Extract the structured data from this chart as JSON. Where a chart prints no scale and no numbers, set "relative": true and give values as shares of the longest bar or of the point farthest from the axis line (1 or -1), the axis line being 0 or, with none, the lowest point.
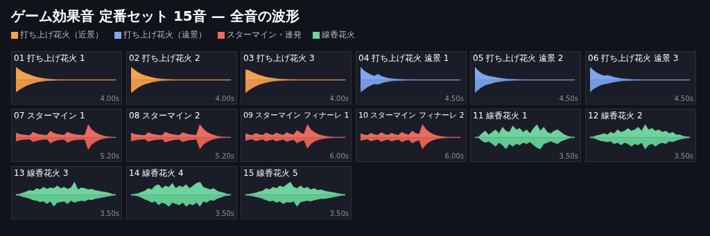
{
  "chart_data": [
    {
      "type": "other",
      "title": "ゲーム効果音 定番セット 15音 — 全音の波形",
      "legend": "top left",
      "series": [
        {
          "name": "打ち上げ花火（近景）",
          "color": "#f4a24e"
        },
        {
          "name": "打ち上げ花火（遠景）",
          "color": "#7fa7ef"
        },
        {
          "name": "スターマイン・連発",
          "color": "#ec6b5f"
        },
        {
          "name": "線香花火",
          "color": "#6fd39e"
        }
      ]
    },
    {
      "type": "area",
      "title": "01 打ち上げ花火 1",
      "relative": true,
      "annotations": [
        "4.00s"
      ],
      "categories": [
        null,
        null,
        null,
        null,
        null,
        null,
        null,
        null,
        null,
        null,
        null,
        null,
        null,
        null,
        null,
        null,
        null,
        null,
        null,
        null,
        null,
        null,
        null,
        null,
        null,
        null,
        null,
        null,
        null,
        null
      ],
      "series": [
        {
          "color": "#f4a24e",
          "values": [
            1,
            0.8,
            0.62,
            0.5,
            0.4,
            0.3,
            0.22,
            0.16,
            0.11,
            0.08,
            0.06,
            0.04,
            0.03,
            0.03,
            0.02,
            0.02,
            0.02,
            0.02,
            0.02,
            0.02,
            0.02,
            0.02,
            0.02,
            0.02,
            0.02,
            0.02,
            0.02,
            0.02,
            0.02,
            0.02
          ]
        },
        {
          "color": "#e8964a",
          "values": [
            -0.95,
            -0.75,
            -0.6,
            -0.45,
            -0.35,
            -0.25,
            -0.18,
            -0.12,
            -0.09,
            -0.06,
            -0.05,
            -0.04,
            -0.03,
            -0.02,
            -0.02,
            -0.02,
            -0.02,
            -0.02,
            -0.02,
            -0.02,
            -0.02,
            -0.02,
            -0.02,
            -0.02,
            -0.02,
            -0.02,
            -0.02,
            -0.02,
            -0.02,
            -0.02
          ]
        }
      ]
    },
    {
      "type": "area",
      "title": "02 打ち上げ花火 2",
      "relative": true,
      "annotations": [
        "4.00s"
      ],
      "categories": [
        null,
        null,
        null,
        null,
        null,
        null,
        null,
        null,
        null,
        null,
        null,
        null,
        null,
        null,
        null,
        null,
        null,
        null,
        null,
        null,
        null,
        null,
        null,
        null,
        null,
        null,
        null,
        null,
        null,
        null
      ],
      "series": [
        {
          "color": "#f4a24e",
          "values": [
            1,
            0.78,
            0.6,
            0.45,
            0.35,
            0.27,
            0.2,
            0.14,
            0.1,
            0.07,
            0.05,
            0.04,
            0.03,
            0.02,
            0.02,
            0.02,
            0.02,
            0.02,
            0.02,
            0.02,
            0.02,
            0.02,
            0.02,
            0.02,
            0.02,
            0.02,
            0.02,
            0.02,
            0.02,
            0.02
          ]
        },
        {
          "color": "#e8964a",
          "values": [
            -1,
            -0.8,
            -0.6,
            -0.45,
            -0.33,
            -0.25,
            -0.17,
            -0.12,
            -0.08,
            -0.06,
            -0.04,
            -0.03,
            -0.03,
            -0.02,
            -0.02,
            -0.02,
            -0.02,
            -0.02,
            -0.02,
            -0.02,
            -0.02,
            -0.02,
            -0.02,
            -0.02,
            -0.02,
            -0.02,
            -0.02,
            -0.02,
            -0.02,
            -0.02
          ]
        }
      ]
    },
    {
      "type": "area",
      "title": "03 打ち上げ花火 3",
      "relative": true,
      "annotations": [
        "4.00s"
      ],
      "categories": [
        null,
        null,
        null,
        null,
        null,
        null,
        null,
        null,
        null,
        null,
        null,
        null,
        null,
        null,
        null,
        null,
        null,
        null,
        null,
        null,
        null,
        null,
        null,
        null,
        null,
        null,
        null,
        null,
        null,
        null
      ],
      "series": [
        {
          "color": "#f4a24e",
          "values": [
            0.8,
            0.75,
            0.6,
            0.48,
            0.38,
            0.3,
            0.22,
            0.17,
            0.13,
            0.09,
            0.07,
            0.05,
            0.04,
            0.03,
            0.03,
            0.02,
            0.02,
            0.02,
            0.02,
            0.02,
            0.02,
            0.02,
            0.02,
            0.02,
            0.02,
            0.02,
            0.02,
            0.02,
            0.02,
            0.02
          ]
        },
        {
          "color": "#e8964a",
          "values": [
            -1,
            -0.8,
            -0.62,
            -0.48,
            -0.36,
            -0.27,
            -0.2,
            -0.14,
            -0.1,
            -0.07,
            -0.05,
            -0.04,
            -0.03,
            -0.03,
            -0.02,
            -0.02,
            -0.02,
            -0.02,
            -0.02,
            -0.02,
            -0.02,
            -0.02,
            -0.02,
            -0.02,
            -0.02,
            -0.02,
            -0.02,
            -0.02,
            -0.02,
            -0.02
          ]
        }
      ]
    },
    {
      "type": "area",
      "title": "04 打ち上げ花火 遠景 1",
      "relative": true,
      "annotations": [
        "4.50s"
      ],
      "categories": [
        null,
        null,
        null,
        null,
        null,
        null,
        null,
        null,
        null,
        null,
        null,
        null,
        null,
        null,
        null,
        null,
        null,
        null,
        null,
        null,
        null,
        null,
        null,
        null,
        null,
        null,
        null,
        null,
        null,
        null
      ],
      "series": [
        {
          "color": "#7fa7ef",
          "values": [
            1,
            0.72,
            0.55,
            0.4,
            0.3,
            0.45,
            0.3,
            0.2,
            0.14,
            0.1,
            0.07,
            0.05,
            0.04,
            0.03,
            0.03,
            0.03,
            0.02,
            0.02,
            0.02,
            0.02,
            0.02,
            0.02,
            0.02,
            0.02,
            0.02,
            0.02,
            0.02,
            0.02,
            0.02,
            0.02
          ]
        },
        {
          "color": "#739be3",
          "values": [
            -0.95,
            -0.75,
            -0.55,
            -0.42,
            -0.3,
            -0.35,
            -0.25,
            -0.17,
            -0.12,
            -0.08,
            -0.06,
            -0.05,
            -0.04,
            -0.03,
            -0.03,
            -0.02,
            -0.02,
            -0.02,
            -0.02,
            -0.02,
            -0.02,
            -0.02,
            -0.02,
            -0.02,
            -0.02,
            -0.02,
            -0.02,
            -0.02,
            -0.02,
            -0.02
          ]
        }
      ]
    },
    {
      "type": "area",
      "title": "05 打ち上げ花火 遠景 2",
      "relative": true,
      "annotations": [
        "4.50s"
      ],
      "categories": [
        null,
        null,
        null,
        null,
        null,
        null,
        null,
        null,
        null,
        null,
        null,
        null,
        null,
        null,
        null,
        null,
        null,
        null,
        null,
        null,
        null,
        null,
        null,
        null,
        null,
        null,
        null,
        null,
        null,
        null
      ],
      "series": [
        {
          "color": "#7fa7ef",
          "values": [
            1,
            0.7,
            0.5,
            0.38,
            0.3,
            0.25,
            0.2,
            0.15,
            0.11,
            0.08,
            0.06,
            0.05,
            0.04,
            0.03,
            0.03,
            0.02,
            0.02,
            0.02,
            0.02,
            0.02,
            0.02,
            0.02,
            0.02,
            0.02,
            0.02,
            0.02,
            0.02,
            0.02,
            0.02,
            0.02
          ]
        },
        {
          "color": "#739be3",
          "values": [
            -1,
            -0.75,
            -0.55,
            -0.4,
            -0.32,
            -0.25,
            -0.18,
            -0.13,
            -0.1,
            -0.07,
            -0.05,
            -0.04,
            -0.03,
            -0.03,
            -0.02,
            -0.02,
            -0.02,
            -0.02,
            -0.02,
            -0.02,
            -0.02,
            -0.02,
            -0.02,
            -0.02,
            -0.02,
            -0.02,
            -0.02,
            -0.02,
            -0.02,
            -0.02
          ]
        }
      ]
    },
    {
      "type": "area",
      "title": "06 打ち上げ花火 遠景 3",
      "relative": true,
      "annotations": [
        "4.50s"
      ],
      "categories": [
        null,
        null,
        null,
        null,
        null,
        null,
        null,
        null,
        null,
        null,
        null,
        null,
        null,
        null,
        null,
        null,
        null,
        null,
        null,
        null,
        null,
        null,
        null,
        null,
        null,
        null,
        null,
        null,
        null,
        null
      ],
      "series": [
        {
          "color": "#7fa7ef",
          "values": [
            1,
            0.75,
            0.55,
            0.42,
            0.32,
            0.35,
            0.3,
            0.2,
            0.16,
            0.1,
            0.08,
            0.06,
            0.04,
            0.03,
            0.03,
            0.02,
            0.02,
            0.02,
            0.02,
            0.02,
            0.02,
            0.02,
            0.02,
            0.02,
            0.02,
            0.02,
            0.02,
            0.02,
            0.02,
            0.02
          ]
        },
        {
          "color": "#739be3",
          "values": [
            -0.95,
            -0.7,
            -0.55,
            -0.4,
            -0.32,
            -0.28,
            -0.22,
            -0.16,
            -0.12,
            -0.08,
            -0.06,
            -0.05,
            -0.04,
            -0.03,
            -0.03,
            -0.02,
            -0.02,
            -0.02,
            -0.02,
            -0.02,
            -0.02,
            -0.02,
            -0.02,
            -0.02,
            -0.02,
            -0.02,
            -0.02,
            -0.02,
            -0.02,
            -0.02
          ]
        }
      ]
    },
    {
      "type": "area",
      "title": "07 スターマイン 1",
      "relative": true,
      "annotations": [
        "5.20s"
      ],
      "categories": [
        null,
        null,
        null,
        null,
        null,
        null,
        null,
        null,
        null,
        null,
        null,
        null,
        null,
        null,
        null,
        null,
        null,
        null,
        null,
        null,
        null,
        null,
        null,
        null,
        null,
        null,
        null,
        null,
        null,
        null
      ],
      "series": [
        {
          "color": "#ec6b5f",
          "values": [
            0.35,
            0.25,
            0.2,
            0.17,
            0.15,
            0.42,
            0.28,
            0.22,
            0.18,
            0.16,
            0.5,
            0.33,
            0.25,
            0.2,
            0.18,
            0.42,
            0.3,
            0.23,
            0.2,
            0.18,
            0.17,
            1,
            0.6,
            0.4,
            0.25,
            0.15,
            0.08,
            0.04,
            0.02,
            0.02
          ]
        },
        {
          "color": "#e06054",
          "values": [
            -0.3,
            -0.22,
            -0.18,
            -0.15,
            -0.13,
            -0.35,
            -0.25,
            -0.2,
            -0.16,
            -0.14,
            -0.45,
            -0.3,
            -0.22,
            -0.18,
            -0.16,
            -0.4,
            -0.27,
            -0.2,
            -0.18,
            -0.16,
            -0.15,
            -0.95,
            -0.55,
            -0.35,
            -0.22,
            -0.12,
            -0.07,
            -0.03,
            -0.02,
            -0.02
          ]
        }
      ]
    },
    {
      "type": "area",
      "title": "08 スターマイン 2",
      "relative": true,
      "annotations": [
        "5.20s"
      ],
      "categories": [
        null,
        null,
        null,
        null,
        null,
        null,
        null,
        null,
        null,
        null,
        null,
        null,
        null,
        null,
        null,
        null,
        null,
        null,
        null,
        null,
        null,
        null,
        null,
        null,
        null,
        null,
        null,
        null,
        null,
        null
      ],
      "series": [
        {
          "color": "#ec6b5f",
          "values": [
            0.35,
            0.25,
            0.2,
            0.17,
            0.15,
            0.38,
            0.27,
            0.21,
            0.18,
            0.16,
            0.42,
            0.3,
            0.23,
            0.19,
            0.17,
            0.38,
            0.28,
            0.22,
            0.19,
            0.17,
            1,
            0.65,
            0.42,
            0.28,
            0.18,
            0.1,
            0.05,
            0.03,
            0.02,
            0.02
          ]
        },
        {
          "color": "#e06054",
          "values": [
            -0.3,
            -0.22,
            -0.18,
            -0.15,
            -0.13,
            -0.33,
            -0.24,
            -0.19,
            -0.16,
            -0.14,
            -0.38,
            -0.28,
            -0.21,
            -0.17,
            -0.15,
            -0.35,
            -0.26,
            -0.2,
            -0.17,
            -0.15,
            -0.9,
            -0.55,
            -0.36,
            -0.23,
            -0.14,
            -0.08,
            -0.04,
            -0.02,
            -0.02,
            -0.02
          ]
        }
      ]
    },
    {
      "type": "area",
      "title": "09 スターマイン フィナーレ 1",
      "relative": true,
      "annotations": [
        "6.00s"
      ],
      "categories": [
        null,
        null,
        null,
        null,
        null,
        null,
        null,
        null,
        null,
        null,
        null,
        null,
        null,
        null,
        null,
        null,
        null,
        null,
        null,
        null,
        null,
        null,
        null,
        null,
        null,
        null,
        null,
        null,
        null,
        null
      ],
      "series": [
        {
          "color": "#ec6b5f",
          "values": [
            0.3,
            0.2,
            0.16,
            0.32,
            0.22,
            0.17,
            0.35,
            0.24,
            0.18,
            0.35,
            0.24,
            0.18,
            0.38,
            0.26,
            0.2,
            0.55,
            0.35,
            0.25,
            1,
            0.6,
            0.4,
            0.25,
            0.16,
            0.1,
            0.06,
            0.04,
            0.02,
            0.02,
            0.02,
            0.02
          ]
        },
        {
          "color": "#e06054",
          "values": [
            -0.25,
            -0.18,
            -0.14,
            -0.28,
            -0.2,
            -0.15,
            -0.3,
            -0.21,
            -0.16,
            -0.3,
            -0.21,
            -0.16,
            -0.33,
            -0.23,
            -0.18,
            -0.45,
            -0.3,
            -0.22,
            -0.85,
            -0.5,
            -0.33,
            -0.2,
            -0.13,
            -0.08,
            -0.05,
            -0.03,
            -0.02,
            -0.02,
            -0.02,
            -0.02
          ]
        }
      ]
    },
    {
      "type": "area",
      "title": "10 スターマイン フィナーレ 2",
      "relative": true,
      "annotations": [
        "6.00s"
      ],
      "categories": [
        null,
        null,
        null,
        null,
        null,
        null,
        null,
        null,
        null,
        null,
        null,
        null,
        null,
        null,
        null,
        null,
        null,
        null,
        null,
        null,
        null,
        null,
        null,
        null,
        null,
        null,
        null,
        null,
        null,
        null
      ],
      "series": [
        {
          "color": "#ec6b5f",
          "values": [
            0.3,
            0.2,
            0.16,
            0.33,
            0.22,
            0.17,
            0.38,
            0.25,
            0.18,
            0.33,
            0.23,
            0.18,
            0.4,
            0.27,
            0.2,
            0.5,
            0.33,
            0.24,
            1,
            0.62,
            0.4,
            0.25,
            0.15,
            0.09,
            0.05,
            0.03,
            0.02,
            0.02,
            0.02,
            0.02
          ]
        },
        {
          "color": "#e06054",
          "values": [
            -0.25,
            -0.18,
            -0.14,
            -0.28,
            -0.2,
            -0.15,
            -0.32,
            -0.22,
            -0.16,
            -0.3,
            -0.21,
            -0.16,
            -0.35,
            -0.24,
            -0.18,
            -0.45,
            -0.3,
            -0.22,
            -0.9,
            -0.55,
            -0.35,
            -0.22,
            -0.13,
            -0.08,
            -0.05,
            -0.03,
            -0.02,
            -0.02,
            -0.02,
            -0.02
          ]
        }
      ]
    },
    {
      "type": "area",
      "title": "11 線香花火 1",
      "relative": true,
      "annotations": [
        "3.50s"
      ],
      "categories": [
        null,
        null,
        null,
        null,
        null,
        null,
        null,
        null,
        null,
        null,
        null,
        null,
        null,
        null,
        null,
        null,
        null,
        null,
        null,
        null,
        null,
        null,
        null,
        null,
        null,
        null,
        null,
        null,
        null,
        null
      ],
      "series": [
        {
          "color": "#6fd39e",
          "values": [
            0.03,
            0.03,
            0.3,
            0.5,
            0.2,
            0.4,
            0.6,
            0.3,
            0.8,
            0.5,
            0.4,
            0.9,
            0.6,
            0.7,
            0.4,
            0.6,
            0.3,
            0.7,
            1,
            0.5,
            0.8,
            0.4,
            0.3,
            0.5,
            0.6,
            0.4,
            0.2,
            0.1,
            0.03,
            0.03
          ]
        },
        {
          "color": "#63c792",
          "values": [
            -0.03,
            -0.03,
            -0.25,
            -0.4,
            -0.3,
            -0.5,
            -0.7,
            -0.4,
            -0.6,
            -0.9,
            -0.5,
            -0.7,
            -0.5,
            -0.6,
            -0.4,
            -0.5,
            -0.35,
            -0.6,
            -0.8,
            -0.9,
            -0.5,
            -0.4,
            -0.3,
            -0.4,
            -0.5,
            -0.3,
            -0.2,
            -0.1,
            -0.03,
            -0.03
          ]
        }
      ]
    },
    {
      "type": "area",
      "title": "12 線香花火 2",
      "relative": true,
      "annotations": [
        "3.50s"
      ],
      "categories": [
        null,
        null,
        null,
        null,
        null,
        null,
        null,
        null,
        null,
        null,
        null,
        null,
        null,
        null,
        null,
        null,
        null,
        null,
        null,
        null,
        null,
        null,
        null,
        null,
        null,
        null,
        null,
        null,
        null,
        null
      ],
      "series": [
        {
          "color": "#6fd39e",
          "values": [
            0.03,
            0.05,
            0.15,
            0.2,
            0.3,
            0.2,
            0.4,
            0.3,
            0.6,
            0.4,
            0.5,
            0.7,
            0.5,
            0.6,
            0.8,
            0.5,
            1,
            0.6,
            0.7,
            0.5,
            0.6,
            0.4,
            0.5,
            0.3,
            0.4,
            0.2,
            0.2,
            0.1,
            0.05,
            0.03
          ]
        },
        {
          "color": "#63c792",
          "values": [
            -0.03,
            -0.05,
            -0.15,
            -0.25,
            -0.3,
            -0.35,
            -0.3,
            -0.5,
            -0.4,
            -0.6,
            -0.4,
            -0.5,
            -0.7,
            -0.5,
            -0.6,
            -0.4,
            -0.9,
            -0.6,
            -0.5,
            -0.7,
            -0.5,
            -0.4,
            -0.5,
            -0.3,
            -0.35,
            -0.25,
            -0.15,
            -0.1,
            -0.05,
            -0.03
          ]
        }
      ]
    },
    {
      "type": "area",
      "title": "13 線香花火 3",
      "relative": true,
      "annotations": [
        "3.50s"
      ],
      "categories": [
        null,
        null,
        null,
        null,
        null,
        null,
        null,
        null,
        null,
        null,
        null,
        null,
        null,
        null,
        null,
        null,
        null,
        null,
        null,
        null,
        null,
        null,
        null,
        null,
        null,
        null,
        null,
        null,
        null,
        null
      ],
      "series": [
        {
          "color": "#6fd39e",
          "values": [
            0.03,
            0.05,
            0.15,
            0.25,
            0.35,
            0.3,
            0.5,
            0.4,
            0.6,
            0.45,
            0.55,
            0.5,
            0.7,
            0.5,
            0.6,
            0.45,
            0.55,
            1,
            0.4,
            0.55,
            0.5,
            0.4,
            0.45,
            0.35,
            0.3,
            0.25,
            0.2,
            0.15,
            0.05,
            0.03
          ]
        },
        {
          "color": "#63c792",
          "values": [
            -0.03,
            -0.05,
            -0.15,
            -0.2,
            -0.3,
            -0.4,
            -0.45,
            -0.55,
            -0.5,
            -0.7,
            -0.5,
            -0.9,
            -0.6,
            -0.55,
            -0.5,
            -0.7,
            -0.45,
            -0.6,
            -0.5,
            -0.45,
            -0.5,
            -0.35,
            -0.4,
            -0.3,
            -0.25,
            -0.2,
            -0.15,
            -0.1,
            -0.05,
            -0.03
          ]
        }
      ]
    },
    {
      "type": "area",
      "title": "14 線香花火 4",
      "relative": true,
      "annotations": [
        "3.50s"
      ],
      "categories": [
        null,
        null,
        null,
        null,
        null,
        null,
        null,
        null,
        null,
        null,
        null,
        null,
        null,
        null,
        null,
        null,
        null,
        null,
        null,
        null,
        null,
        null,
        null,
        null,
        null,
        null,
        null,
        null,
        null,
        null
      ],
      "series": [
        {
          "color": "#6fd39e",
          "values": [
            0.03,
            0.05,
            0.1,
            0.2,
            0.3,
            0.5,
            0.4,
            0.7,
            0.8,
            0.5,
            0.7,
            0.6,
            0.9,
            0.5,
            0.7,
            0.6,
            0.8,
            0.5,
            0.7,
            0.9,
            1,
            0.6,
            0.5,
            0.4,
            0.5,
            0.3,
            0.2,
            0.15,
            0.05,
            0.03
          ]
        },
        {
          "color": "#63c792",
          "values": [
            -0.03,
            -0.05,
            -0.1,
            -0.2,
            -0.35,
            -0.45,
            -0.6,
            -0.5,
            -0.8,
            -0.6,
            -0.7,
            -0.9,
            -0.6,
            -0.7,
            -0.8,
            -0.6,
            -0.9,
            -0.7,
            -0.8,
            -0.6,
            -0.9,
            -0.5,
            -0.6,
            -0.4,
            -0.45,
            -0.3,
            -0.2,
            -0.1,
            -0.05,
            -0.03
          ]
        }
      ]
    },
    {
      "type": "area",
      "title": "15 線香花火 5",
      "relative": true,
      "annotations": [
        "3.50s"
      ],
      "categories": [
        null,
        null,
        null,
        null,
        null,
        null,
        null,
        null,
        null,
        null,
        null,
        null,
        null,
        null,
        null,
        null,
        null,
        null,
        null,
        null,
        null,
        null,
        null,
        null,
        null,
        null,
        null,
        null,
        null,
        null
      ],
      "series": [
        {
          "color": "#6fd39e",
          "values": [
            0.03,
            0.05,
            0.1,
            0.15,
            0.25,
            0.3,
            0.5,
            0.4,
            0.6,
            0.5,
            0.7,
            0.6,
            0.8,
            1,
            0.6,
            0.5,
            0.7,
            0.5,
            0.6,
            0.4,
            0.5,
            0.35,
            0.4,
            0.3,
            0.25,
            0.2,
            0.15,
            0.1,
            0.05,
            0.03
          ]
        },
        {
          "color": "#63c792",
          "values": [
            -0.03,
            -0.05,
            -0.1,
            -0.15,
            -0.2,
            -0.3,
            -0.4,
            -0.5,
            -0.45,
            -0.6,
            -0.5,
            -0.7,
            -0.55,
            -0.6,
            -0.5,
            -0.9,
            -0.55,
            -0.5,
            -0.45,
            -0.5,
            -0.4,
            -0.35,
            -0.3,
            -0.3,
            -0.25,
            -0.2,
            -0.15,
            -0.1,
            -0.05,
            -0.03
          ]
        }
      ]
    }
  ]
}
